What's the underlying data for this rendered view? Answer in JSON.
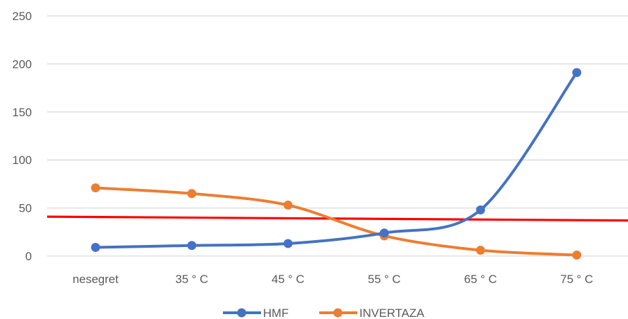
{
  "chart_data": {
    "type": "line",
    "title": "",
    "xlabel": "",
    "ylabel": "",
    "categories": [
      "nesegret",
      "35 ° C",
      "45 ° C",
      "55 ° C",
      "65 ° C",
      "75 ° C"
    ],
    "ylim": [
      0,
      250
    ],
    "yticks": [
      "0",
      "50",
      "100",
      "150",
      "200",
      "250"
    ],
    "grid": true,
    "legend_position": "bottom",
    "series": [
      {
        "name": "HMF",
        "color": "#4472C4",
        "values": [
          9,
          11,
          13,
          24,
          48,
          191
        ]
      },
      {
        "name": "INVERTAZA",
        "color": "#ED7D31",
        "values": [
          71,
          65,
          53,
          21,
          6,
          1
        ]
      }
    ],
    "reference_line": {
      "color": "#FF0000",
      "from": 41,
      "to": 37
    }
  }
}
